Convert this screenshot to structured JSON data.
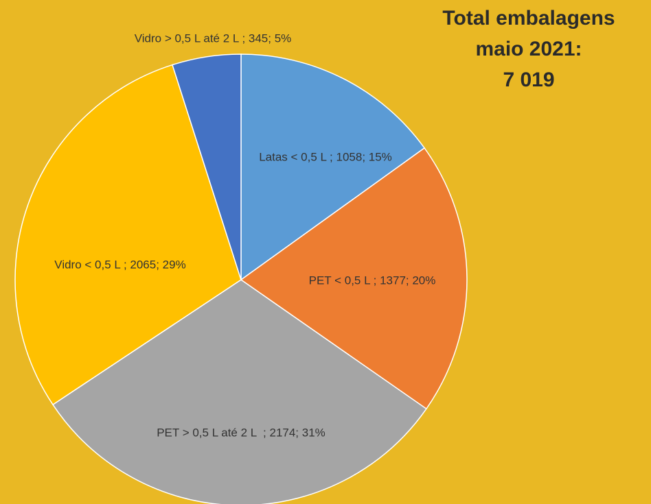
{
  "chart_data": {
    "type": "pie",
    "title": [
      "Total embalagens",
      "maio 2021:",
      "7 019"
    ],
    "categories": [
      "Latas < 0,5 L",
      "PET < 0,5 L",
      "PET > 0,5 L até 2 L",
      "Vidro < 0,5 L",
      "Vidro > 0,5 L até 2 L"
    ],
    "values": [
      1058,
      1377,
      2174,
      2065,
      345
    ],
    "value_labels": [
      "Latas < 0,5 L ; 1058; 15%",
      "PET < 0,5 L ; 1377; 20%",
      "PET > 0,5 L até 2 L  ; 2174; 31%",
      "Vidro < 0,5 L ; 2065; 29%",
      "Vidro > 0,5 L até 2 L ; 345; 5%"
    ],
    "colors": [
      "#5b9bd5",
      "#ed7d31",
      "#a5a5a5",
      "#ffc000",
      "#4472c4"
    ]
  }
}
